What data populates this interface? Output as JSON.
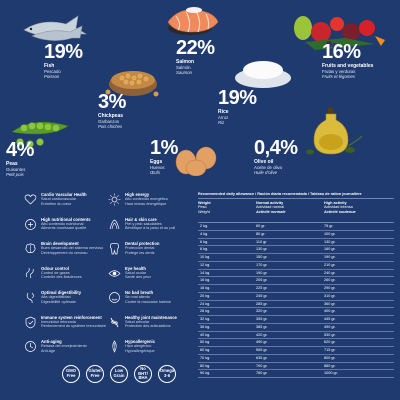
{
  "ingredients": {
    "fish": {
      "percent": "19%",
      "name": "Fish",
      "sub1": "Pescado",
      "sub2": "Poisson"
    },
    "salmon": {
      "percent": "22%",
      "name": "Salmon",
      "sub1": "Salmón",
      "sub2": "Saumon"
    },
    "fruits": {
      "percent": "16%",
      "name": "Fruits and vegetables",
      "sub1": "Frutas y verduras",
      "sub2": "Fruits et légumes"
    },
    "chickpeas": {
      "percent": "3%",
      "name": "Chickpeas",
      "sub1": "Garbanzos",
      "sub2": "Pois chiches"
    },
    "rice": {
      "percent": "19%",
      "name": "Rice",
      "sub1": "Arroz",
      "sub2": "Riz"
    },
    "peas": {
      "percent": "4%",
      "name": "Peas",
      "sub1": "Guisantes",
      "sub2": "Petit pois"
    },
    "eggs": {
      "percent": "1%",
      "name": "Eggs",
      "sub1": "Huevos",
      "sub2": "Œufs"
    },
    "oil": {
      "percent": "0,4%",
      "name": "Olive oil",
      "sub1": "Aceite de oliva",
      "sub2": "Huile d'olive"
    }
  },
  "benefits_left": [
    {
      "title": "Cardio Vascular Health",
      "sub1": "Salud cardiovascular",
      "sub2": "Entretien du cœur",
      "icon": "heart-icon"
    },
    {
      "title": "High nutritional contents",
      "sub1": "Alto contenido nutricional",
      "sub2": "Aliments nourissant qualité",
      "icon": "nutrition-icon"
    },
    {
      "title": "Brain development",
      "sub1": "Buen desarrollo del sistema nervioso",
      "sub2": "Développement du cerveau",
      "icon": "brain-icon"
    },
    {
      "title": "Odour control",
      "sub1": "Control de gases",
      "sub2": "Contrôle des flatulences",
      "icon": "odour-icon"
    },
    {
      "title": "Optimal digestibility",
      "sub1": "Alta digestibilidad",
      "sub2": "Digestibilité optimale",
      "icon": "digestion-icon"
    },
    {
      "title": "Immune system reinforcement",
      "sub1": "Inmunidad reforzada",
      "sub2": "Renforcement du système immunitaire",
      "icon": "immune-icon"
    },
    {
      "title": "Anti-aging",
      "sub1": "Retrasa del envejecimiento",
      "sub2": "Anti-âge",
      "icon": "anti-aging-icon"
    }
  ],
  "benefits_right": [
    {
      "title": "High energy",
      "sub1": "Alto contenido energético",
      "sub2": "Haut niveau énergétique",
      "icon": "sun-icon"
    },
    {
      "title": "Hair & skin care",
      "sub1": "Piel y pelo saludables",
      "sub2": "Bénéfique à la peau et au poil",
      "icon": "hair-skin-icon"
    },
    {
      "title": "Dental protection",
      "sub1": "Protección dental",
      "sub2": "Protège les dents",
      "icon": "tooth-icon"
    },
    {
      "title": "Eye health",
      "sub1": "Salud ocular",
      "sub2": "Santé des yeux",
      "icon": "eye-icon"
    },
    {
      "title": "No bad breath",
      "sub1": "Sin mal aliento",
      "sub2": "Contre la mauvaise haleine",
      "icon": "breath-icon"
    },
    {
      "title": "Healthy joint maintenance",
      "sub1": "Salud articular",
      "sub2": "Protection des articulations",
      "icon": "joint-icon"
    },
    {
      "title": "Hypoallergenic",
      "sub1": "Hipo alergénico",
      "sub2": "Hypoallergénique",
      "icon": "hypoallergenic-icon"
    }
  ],
  "badges": [
    "GMO Free",
    "Gluten Free",
    "Low Grain",
    "No BHT/ BHA",
    "Omega 3-6"
  ],
  "table": {
    "title": "Recommended daily allowance / Ración diaria recomendada / Tableau de ration journalière",
    "col1": {
      "l1": "Weight",
      "l2": "Peso",
      "l3": "Weight"
    },
    "col2": {
      "l1": "Normal activity",
      "l2": "Actividad normal",
      "l3": "Activité normale"
    },
    "col3": {
      "l1": "High activity",
      "l2": "Actividad intensa",
      "l3": "Activité soutenue"
    },
    "rows": [
      [
        "2 kg.",
        "60 gr.",
        "75 gr."
      ],
      [
        "4 kg.",
        "80 gr.",
        "100 gr."
      ],
      [
        "6 kg.",
        "110 gr.",
        "130 gr."
      ],
      [
        "8 kg.",
        "130 gr.",
        "160 gr."
      ],
      [
        "10 kg.",
        "150 gr.",
        "190 gr."
      ],
      [
        "12 kg.",
        "170 gr.",
        "210 gr."
      ],
      [
        "14 kg.",
        "190 gr.",
        "240 gr."
      ],
      [
        "16 kg.",
        "205 gr.",
        "260 gr."
      ],
      [
        "18 kg.",
        "225 gr.",
        "290 gr."
      ],
      [
        "20 kg.",
        "245 gr.",
        "310 gr."
      ],
      [
        "24 kg.",
        "285 gr.",
        "360 gr."
      ],
      [
        "28 kg.",
        "320 gr.",
        "400 gr."
      ],
      [
        "32 kg.",
        "355 gr.",
        "445 gr."
      ],
      [
        "36 kg.",
        "385 gr.",
        "490 gr."
      ],
      [
        "40 kg.",
        "420 gr.",
        "530 gr."
      ],
      [
        "50 kg.",
        "490 gr.",
        "620 gr."
      ],
      [
        "60 kg.",
        "565 gr.",
        "715 gr."
      ],
      [
        "70 kg.",
        "635 gr.",
        "800 gr."
      ],
      [
        "80 kg.",
        "700 gr.",
        "880 gr."
      ],
      [
        "90 kg.",
        "760 gr.",
        "1000 gr."
      ]
    ]
  },
  "colors": {
    "background": "#1f3a6e",
    "text": "#ffffff",
    "rule": "#5f78a8"
  }
}
